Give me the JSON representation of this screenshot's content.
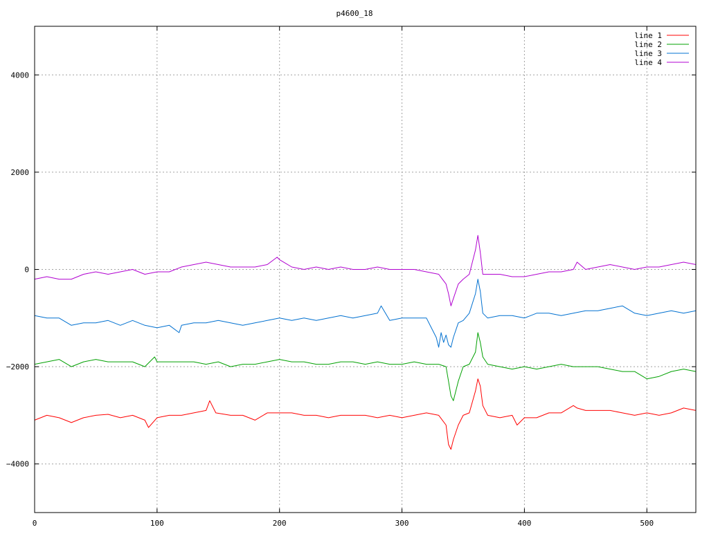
{
  "chart_data": {
    "type": "line",
    "title": "p4600_18",
    "xlabel": "",
    "ylabel": "",
    "xlim": [
      0,
      540
    ],
    "ylim": [
      -5000,
      5000
    ],
    "xticks": [
      0,
      100,
      200,
      300,
      400,
      500
    ],
    "yticks": [
      -4000,
      -2000,
      0,
      2000,
      4000
    ],
    "ytick_labels": [
      "−4000",
      "−2000",
      "0",
      "2000",
      "4000"
    ],
    "grid": true,
    "legend_position": "top-right",
    "series": [
      {
        "name": "line 1",
        "color": "#ff0000",
        "x": [
          0,
          10,
          20,
          30,
          40,
          50,
          60,
          70,
          80,
          90,
          93,
          100,
          110,
          120,
          130,
          140,
          143,
          148,
          160,
          170,
          180,
          190,
          200,
          210,
          220,
          230,
          240,
          250,
          260,
          270,
          280,
          290,
          300,
          310,
          320,
          330,
          336,
          338,
          340,
          342,
          346,
          350,
          355,
          360,
          362,
          364,
          366,
          370,
          380,
          390,
          394,
          400,
          410,
          420,
          430,
          440,
          443,
          450,
          460,
          470,
          480,
          490,
          500,
          510,
          520,
          530,
          540
        ],
        "y": [
          -3100,
          -3000,
          -3050,
          -3150,
          -3050,
          -3000,
          -2980,
          -3050,
          -3000,
          -3100,
          -3250,
          -3050,
          -3000,
          -3000,
          -2950,
          -2900,
          -2700,
          -2950,
          -3000,
          -3000,
          -3100,
          -2950,
          -2950,
          -2950,
          -3000,
          -3000,
          -3050,
          -3000,
          -3000,
          -3000,
          -3050,
          -3000,
          -3050,
          -3000,
          -2950,
          -3000,
          -3200,
          -3600,
          -3700,
          -3500,
          -3200,
          -3000,
          -2950,
          -2500,
          -2250,
          -2400,
          -2800,
          -3000,
          -3050,
          -3000,
          -3200,
          -3050,
          -3050,
          -2950,
          -2950,
          -2800,
          -2850,
          -2900,
          -2900,
          -2900,
          -2950,
          -3000,
          -2950,
          -3000,
          -2950,
          -2850,
          -2900
        ]
      },
      {
        "name": "line 2",
        "color": "#00a000",
        "x": [
          0,
          10,
          20,
          30,
          40,
          50,
          60,
          70,
          80,
          90,
          98,
          100,
          110,
          120,
          130,
          140,
          150,
          160,
          170,
          180,
          190,
          200,
          210,
          220,
          230,
          240,
          250,
          260,
          270,
          280,
          290,
          300,
          310,
          320,
          330,
          336,
          338,
          340,
          342,
          346,
          350,
          355,
          360,
          362,
          364,
          366,
          370,
          380,
          390,
          400,
          410,
          420,
          430,
          440,
          450,
          460,
          470,
          480,
          490,
          500,
          510,
          520,
          530,
          540
        ],
        "y": [
          -1950,
          -1900,
          -1850,
          -2000,
          -1900,
          -1850,
          -1900,
          -1900,
          -1900,
          -2000,
          -1800,
          -1900,
          -1900,
          -1900,
          -1900,
          -1950,
          -1900,
          -2000,
          -1950,
          -1950,
          -1900,
          -1850,
          -1900,
          -1900,
          -1950,
          -1950,
          -1900,
          -1900,
          -1950,
          -1900,
          -1950,
          -1950,
          -1900,
          -1950,
          -1950,
          -2000,
          -2300,
          -2600,
          -2700,
          -2300,
          -2000,
          -1950,
          -1700,
          -1300,
          -1500,
          -1800,
          -1950,
          -2000,
          -2050,
          -2000,
          -2050,
          -2000,
          -1950,
          -2000,
          -2000,
          -2000,
          -2050,
          -2100,
          -2100,
          -2250,
          -2200,
          -2100,
          -2050,
          -2100
        ]
      },
      {
        "name": "line 3",
        "color": "#0070d0",
        "x": [
          0,
          10,
          20,
          30,
          40,
          50,
          60,
          70,
          80,
          90,
          100,
          110,
          118,
          120,
          130,
          140,
          150,
          160,
          170,
          180,
          190,
          200,
          210,
          220,
          230,
          240,
          250,
          260,
          270,
          280,
          283,
          290,
          300,
          310,
          320,
          324,
          328,
          330,
          332,
          334,
          336,
          338,
          340,
          342,
          346,
          350,
          355,
          360,
          362,
          364,
          366,
          370,
          380,
          390,
          400,
          410,
          420,
          430,
          440,
          450,
          460,
          470,
          480,
          490,
          500,
          510,
          520,
          530,
          540
        ],
        "y": [
          -950,
          -1000,
          -1000,
          -1150,
          -1100,
          -1100,
          -1050,
          -1150,
          -1050,
          -1150,
          -1200,
          -1150,
          -1300,
          -1150,
          -1100,
          -1100,
          -1050,
          -1100,
          -1150,
          -1100,
          -1050,
          -1000,
          -1050,
          -1000,
          -1050,
          -1000,
          -950,
          -1000,
          -950,
          -900,
          -750,
          -1050,
          -1000,
          -1000,
          -1000,
          -1200,
          -1400,
          -1600,
          -1300,
          -1500,
          -1350,
          -1550,
          -1600,
          -1400,
          -1100,
          -1050,
          -900,
          -500,
          -200,
          -450,
          -900,
          -1000,
          -950,
          -950,
          -1000,
          -900,
          -900,
          -950,
          -900,
          -850,
          -850,
          -800,
          -750,
          -900,
          -950,
          -900,
          -850,
          -900,
          -850
        ]
      },
      {
        "name": "line 4",
        "color": "#b000d0",
        "x": [
          0,
          10,
          20,
          30,
          40,
          50,
          60,
          70,
          80,
          90,
          100,
          110,
          120,
          130,
          140,
          150,
          160,
          170,
          180,
          190,
          198,
          200,
          210,
          220,
          230,
          240,
          250,
          260,
          270,
          280,
          290,
          300,
          310,
          320,
          330,
          336,
          338,
          340,
          342,
          346,
          350,
          355,
          360,
          362,
          364,
          366,
          370,
          380,
          390,
          400,
          410,
          420,
          430,
          440,
          443,
          450,
          460,
          470,
          480,
          490,
          500,
          510,
          520,
          530,
          540
        ],
        "y": [
          -200,
          -150,
          -200,
          -200,
          -100,
          -50,
          -100,
          -50,
          0,
          -100,
          -50,
          -50,
          50,
          100,
          150,
          100,
          50,
          50,
          50,
          100,
          250,
          200,
          50,
          0,
          50,
          0,
          50,
          0,
          0,
          50,
          0,
          0,
          0,
          -50,
          -100,
          -300,
          -500,
          -750,
          -600,
          -300,
          -200,
          -100,
          400,
          700,
          350,
          -100,
          -100,
          -100,
          -150,
          -150,
          -100,
          -50,
          -50,
          0,
          150,
          0,
          50,
          100,
          50,
          0,
          50,
          50,
          100,
          150,
          100
        ]
      }
    ]
  }
}
